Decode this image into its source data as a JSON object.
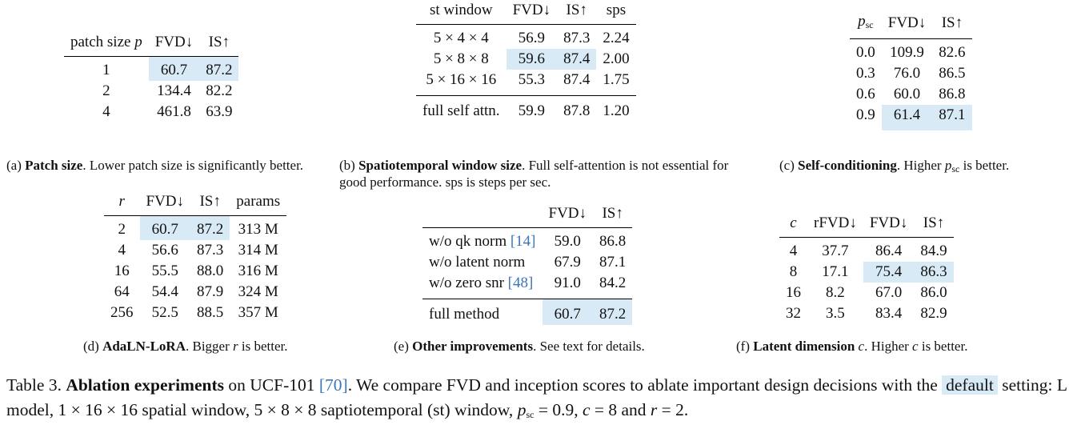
{
  "tables": {
    "a": {
      "headers": [
        "patch size ",
        "p",
        "FVD↓",
        "IS↑"
      ],
      "rows": [
        [
          "1",
          "60.7",
          "87.2"
        ],
        [
          "2",
          "134.4",
          "82.2"
        ],
        [
          "4",
          "461.8",
          "63.9"
        ]
      ],
      "caption_label": "(a) ",
      "caption_bold": "Patch size",
      "caption_text": ". Lower patch size is significantly better."
    },
    "b": {
      "headers": [
        "st window",
        "FVD↓",
        "IS↑",
        "sps"
      ],
      "rows": [
        [
          "5 × 4 × 4",
          "56.9",
          "87.3",
          "2.24"
        ],
        [
          "5 × 8 × 8",
          "59.6",
          "87.4",
          "2.00"
        ],
        [
          "5 × 16 × 16",
          "55.3",
          "87.4",
          "1.75"
        ]
      ],
      "footer": [
        "full self attn.",
        "59.9",
        "87.8",
        "1.20"
      ],
      "caption_label": "(b) ",
      "caption_bold": "Spatiotemporal window size",
      "caption_text": ". Full self-attention is not essential for good performance. sps is steps per sec."
    },
    "c": {
      "headers": [
        "p",
        "sc",
        "FVD↓",
        "IS↑"
      ],
      "rows": [
        [
          "0.0",
          "109.9",
          "82.6"
        ],
        [
          "0.3",
          "76.0",
          "86.5"
        ],
        [
          "0.6",
          "60.0",
          "86.8"
        ],
        [
          "0.9",
          "61.4",
          "87.1"
        ]
      ],
      "caption_label": "(c) ",
      "caption_bold": "Self-conditioning",
      "caption_text_1": ". Higher ",
      "caption_p": "p",
      "caption_sub": "sc",
      "caption_text_2": " is better."
    },
    "d": {
      "headers": [
        "r",
        "FVD↓",
        "IS↑",
        "params"
      ],
      "rows": [
        [
          "2",
          "60.7",
          "87.2",
          "313 M"
        ],
        [
          "4",
          "56.6",
          "87.3",
          "314 M"
        ],
        [
          "16",
          "55.5",
          "88.0",
          "316 M"
        ],
        [
          "64",
          "54.4",
          "87.9",
          "324 M"
        ],
        [
          "256",
          "52.5",
          "88.5",
          "357 M"
        ]
      ],
      "caption_label": "(d) ",
      "caption_bold": "AdaLN-LoRA",
      "caption_text_1": ". Bigger ",
      "caption_var": "r",
      "caption_text_2": " is better."
    },
    "e": {
      "headers": [
        "",
        "FVD↓",
        "IS↑"
      ],
      "rows": [
        {
          "label": "w/o qk norm ",
          "ref": "[14]",
          "fvd": "59.0",
          "is": "86.8"
        },
        {
          "label": "w/o latent norm",
          "ref": "",
          "fvd": "67.9",
          "is": "87.1"
        },
        {
          "label": "w/o zero snr ",
          "ref": "[48]",
          "fvd": "91.0",
          "is": "84.2"
        }
      ],
      "footer": [
        "full method",
        "60.7",
        "87.2"
      ],
      "caption_label": "(e) ",
      "caption_bold": "Other improvements",
      "caption_text": ". See text for details."
    },
    "f": {
      "headers": [
        "c",
        "rFVD↓",
        "FVD↓",
        "IS↑"
      ],
      "rows": [
        [
          "4",
          "37.7",
          "86.4",
          "84.9"
        ],
        [
          "8",
          "17.1",
          "75.4",
          "86.3"
        ],
        [
          "16",
          "8.2",
          "67.0",
          "86.0"
        ],
        [
          "32",
          "3.5",
          "83.4",
          "82.9"
        ]
      ],
      "caption_label": "(f) ",
      "caption_bold": "Latent dimension",
      "caption_text_1": " ",
      "caption_var": "c",
      "caption_text_2": ". Higher ",
      "caption_var2": "c",
      "caption_text_3": " is better."
    }
  },
  "main_caption": {
    "prefix": "Table 3. ",
    "bold": "Ablation experiments",
    "text_1": " on UCF-101 ",
    "ref": "[70]",
    "text_2": ". We compare FVD and inception scores to ablate important design decisions with the ",
    "badge": "default",
    "text_3": " setting: L model, 1 × 16 × 16 spatial window, 5 × 8 × 8 saptiotemporal (st) window, ",
    "p": "p",
    "sub": "sc",
    "text_4": " = 0.9, ",
    "c": "c",
    "text_5": " = 8 and ",
    "r": "r",
    "text_6": " = 2."
  },
  "colors": {
    "highlight": "#d9eaf7",
    "link": "#3a76b8"
  }
}
